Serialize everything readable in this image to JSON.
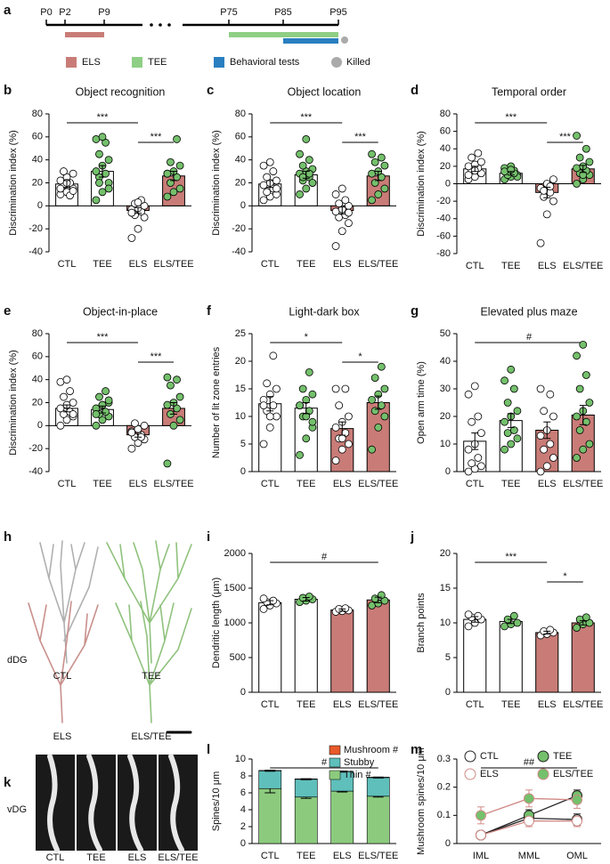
{
  "chart_data": [
    {
      "type": "timeline",
      "panel": "a",
      "ticks": [
        "P0",
        "P2",
        "P9",
        "P75",
        "P85",
        "P95"
      ],
      "periods": [
        {
          "name": "ELS",
          "color": "#c97c77",
          "from": "P2",
          "to": "P9",
          "row": 0
        },
        {
          "name": "TEE",
          "color": "#8fcf85",
          "from": "P75",
          "to": "P95",
          "row": 0
        },
        {
          "name": "Behavioral tests",
          "color": "#2a7fc0",
          "from": "P85",
          "to": "P95",
          "row": 1
        }
      ],
      "event": {
        "name": "Killed",
        "color": "#aaaaaa",
        "at": "P95"
      }
    },
    {
      "type": "bar",
      "panel": "b",
      "title": "Object recognition",
      "ylabel": "Discrimination index (%)",
      "categories": [
        "CTL",
        "TEE",
        "ELS",
        "ELS/TEE"
      ],
      "values": [
        19,
        30,
        -4,
        26
      ],
      "errors": [
        3,
        5,
        2.5,
        4
      ],
      "bar_colors": [
        "#ffffff",
        "#ffffff",
        "#c97c77",
        "#c97c77"
      ],
      "point_colors": [
        "#ffffff",
        "#74c06c",
        "#ffffff",
        "#74c06c"
      ],
      "points": [
        [
          10,
          12,
          15,
          18,
          20,
          22,
          25,
          28,
          30,
          9,
          15,
          20,
          13
        ],
        [
          5,
          12,
          20,
          25,
          28,
          30,
          35,
          40,
          45,
          55,
          58,
          60,
          15,
          20
        ],
        [
          -28,
          -20,
          -10,
          -8,
          -5,
          -3,
          -2,
          0,
          2,
          5,
          -6,
          3
        ],
        [
          8,
          12,
          15,
          20,
          25,
          28,
          30,
          35,
          38,
          58,
          28
        ]
      ],
      "ylim": [
        -40,
        80
      ],
      "yticks": [
        -40,
        -20,
        0,
        20,
        40,
        60,
        80
      ],
      "annotations": [
        {
          "text": "***",
          "between": [
            "CTL",
            "ELS"
          ]
        },
        {
          "text": "***",
          "between": [
            "ELS",
            "ELS/TEE"
          ]
        }
      ]
    },
    {
      "type": "bar",
      "panel": "c",
      "title": "Object location",
      "ylabel": "Discrimination index (%)",
      "categories": [
        "CTL",
        "TEE",
        "ELS",
        "ELS/TEE"
      ],
      "values": [
        19,
        27,
        -4,
        26
      ],
      "errors": [
        3,
        3,
        3,
        4
      ],
      "bar_colors": [
        "#ffffff",
        "#ffffff",
        "#c97c77",
        "#c97c77"
      ],
      "point_colors": [
        "#ffffff",
        "#74c06c",
        "#ffffff",
        "#74c06c"
      ],
      "points": [
        [
          5,
          8,
          10,
          12,
          15,
          18,
          20,
          22,
          25,
          30,
          35,
          38,
          15
        ],
        [
          10,
          15,
          20,
          22,
          25,
          28,
          30,
          32,
          35,
          40,
          45,
          58,
          20,
          25,
          28
        ],
        [
          -35,
          -22,
          -15,
          -10,
          -8,
          -5,
          -3,
          0,
          2,
          5,
          10,
          15,
          -6
        ],
        [
          5,
          10,
          15,
          20,
          25,
          28,
          30,
          35,
          38,
          42,
          45
        ]
      ],
      "ylim": [
        -40,
        80
      ],
      "yticks": [
        -40,
        -20,
        0,
        20,
        40,
        60,
        80
      ],
      "annotations": [
        {
          "text": "***",
          "between": [
            "CTL",
            "ELS"
          ]
        },
        {
          "text": "***",
          "between": [
            "ELS",
            "ELS/TEE"
          ]
        }
      ]
    },
    {
      "type": "bar",
      "panel": "d",
      "title": "Temporal order",
      "ylabel": "Discrimination index (%)",
      "categories": [
        "CTL",
        "TEE",
        "ELS",
        "ELS/TEE"
      ],
      "values": [
        17,
        12,
        -10,
        17
      ],
      "errors": [
        3,
        2,
        6,
        4
      ],
      "bar_colors": [
        "#ffffff",
        "#ffffff",
        "#c97c77",
        "#c97c77"
      ],
      "point_colors": [
        "#ffffff",
        "#74c06c",
        "#ffffff",
        "#74c06c"
      ],
      "points": [
        [
          5,
          8,
          12,
          15,
          18,
          20,
          22,
          25,
          30,
          35,
          10,
          15
        ],
        [
          5,
          8,
          10,
          12,
          15,
          18,
          20,
          8,
          10,
          12,
          14,
          16
        ],
        [
          -68,
          -35,
          -20,
          -15,
          -10,
          -5,
          0,
          5,
          -8,
          -3
        ],
        [
          0,
          5,
          10,
          12,
          15,
          18,
          20,
          25,
          30,
          40,
          55,
          10
        ]
      ],
      "ylim": [
        -80,
        80
      ],
      "yticks": [
        -80,
        -60,
        -40,
        -20,
        0,
        20,
        40,
        60,
        80
      ],
      "annotations": [
        {
          "text": "***",
          "between": [
            "CTL",
            "ELS"
          ]
        },
        {
          "text": "***",
          "between": [
            "ELS",
            "ELS/TEE"
          ]
        }
      ]
    },
    {
      "type": "bar",
      "panel": "e",
      "title": "Object-in-place",
      "ylabel": "Discrimination index (%)",
      "categories": [
        "CTL",
        "TEE",
        "ELS",
        "ELS/TEE"
      ],
      "values": [
        15,
        14,
        -8,
        15
      ],
      "errors": [
        3,
        3,
        2,
        5
      ],
      "bar_colors": [
        "#ffffff",
        "#ffffff",
        "#c97c77",
        "#c97c77"
      ],
      "point_colors": [
        "#ffffff",
        "#74c06c",
        "#ffffff",
        "#74c06c"
      ],
      "points": [
        [
          0,
          5,
          8,
          10,
          12,
          15,
          18,
          20,
          25,
          30,
          38,
          40,
          10
        ],
        [
          0,
          5,
          8,
          10,
          12,
          15,
          18,
          20,
          25,
          30,
          10,
          18,
          22
        ],
        [
          -20,
          -15,
          -12,
          -10,
          -8,
          -5,
          -3,
          0,
          2,
          -10,
          -6
        ],
        [
          -33,
          0,
          5,
          10,
          15,
          18,
          20,
          25,
          35,
          40,
          42
        ]
      ],
      "ylim": [
        -40,
        80
      ],
      "yticks": [
        -40,
        -20,
        0,
        20,
        40,
        60,
        80
      ],
      "annotations": [
        {
          "text": "***",
          "between": [
            "CTL",
            "ELS"
          ]
        },
        {
          "text": "***",
          "between": [
            "ELS",
            "ELS/TEE"
          ]
        }
      ]
    },
    {
      "type": "bar",
      "panel": "f",
      "title": "Light-dark box",
      "ylabel": "Number of lit zone entries",
      "categories": [
        "CTL",
        "TEE",
        "ELS",
        "ELS/TEE"
      ],
      "values": [
        12.3,
        11.5,
        7.8,
        12.5
      ],
      "errors": [
        1.3,
        1,
        1.2,
        1.2
      ],
      "bar_colors": [
        "#ffffff",
        "#ffffff",
        "#c97c77",
        "#c97c77"
      ],
      "point_colors": [
        "#ffffff",
        "#74c06c",
        "#ffffff",
        "#74c06c"
      ],
      "points": [
        [
          5,
          8,
          10,
          11,
          12,
          13,
          14,
          15,
          16,
          21,
          12,
          10
        ],
        [
          3,
          6,
          8,
          10,
          11,
          12,
          13,
          14,
          15,
          18,
          12,
          10,
          9
        ],
        [
          2,
          4,
          5,
          6,
          7,
          8,
          9,
          10,
          12,
          15,
          15,
          6
        ],
        [
          4,
          8,
          10,
          11,
          12,
          13,
          14,
          15,
          17,
          19
        ]
      ],
      "ylim": [
        0,
        25
      ],
      "yticks": [
        0,
        5,
        10,
        15,
        20,
        25
      ],
      "annotations": [
        {
          "text": "*",
          "between": [
            "CTL",
            "ELS"
          ]
        },
        {
          "text": "*",
          "between": [
            "ELS",
            "ELS/TEE"
          ]
        }
      ]
    },
    {
      "type": "bar",
      "panel": "g",
      "title": "Elevated plus maze",
      "ylabel": "Open arm time (%)",
      "categories": [
        "CTL",
        "TEE",
        "ELS",
        "ELS/TEE"
      ],
      "values": [
        11,
        18.5,
        15,
        20.5
      ],
      "errors": [
        3,
        2.5,
        3,
        3.5
      ],
      "bar_colors": [
        "#ffffff",
        "#ffffff",
        "#c97c77",
        "#c97c77"
      ],
      "point_colors": [
        "#ffffff",
        "#74c06c",
        "#ffffff",
        "#74c06c"
      ],
      "points": [
        [
          0,
          1,
          2,
          3,
          5,
          8,
          10,
          14,
          18,
          20,
          28,
          31
        ],
        [
          8,
          10,
          12,
          14,
          15,
          18,
          20,
          22,
          25,
          30,
          33,
          37
        ],
        [
          0,
          2,
          5,
          8,
          10,
          13,
          15,
          20,
          22,
          28,
          30
        ],
        [
          5,
          8,
          10,
          15,
          18,
          20,
          22,
          25,
          30,
          35,
          42,
          46
        ]
      ],
      "ylim": [
        0,
        50
      ],
      "yticks": [
        0,
        10,
        20,
        30,
        40,
        50
      ],
      "annotations": [
        {
          "text": "#",
          "between": [
            "CTL",
            "ELS/TEE"
          ]
        }
      ]
    },
    {
      "type": "bar",
      "panel": "i",
      "ylabel": "Dendritic length (μm)",
      "categories": [
        "CTL",
        "TEE",
        "ELS",
        "ELS/TEE"
      ],
      "values": [
        1290,
        1340,
        1185,
        1330
      ],
      "errors": [
        30,
        25,
        15,
        40
      ],
      "bar_colors": [
        "#ffffff",
        "#ffffff",
        "#c97c77",
        "#c97c77"
      ],
      "point_colors": [
        "#ffffff",
        "#74c06c",
        "#ffffff",
        "#74c06c"
      ],
      "points": [
        [
          1200,
          1250,
          1280,
          1300,
          1320,
          1350
        ],
        [
          1300,
          1320,
          1340,
          1360,
          1380
        ],
        [
          1160,
          1170,
          1180,
          1200,
          1210
        ],
        [
          1250,
          1280,
          1320,
          1350,
          1400
        ]
      ],
      "ylim": [
        0,
        2000
      ],
      "yticks": [
        0,
        500,
        1000,
        1500,
        2000
      ],
      "annotations": [
        {
          "text": "#",
          "between": [
            "CTL",
            "ELS/TEE"
          ]
        }
      ]
    },
    {
      "type": "bar",
      "panel": "j",
      "ylabel": "Branch points",
      "categories": [
        "CTL",
        "TEE",
        "ELS",
        "ELS/TEE"
      ],
      "values": [
        10.5,
        10.2,
        8.6,
        10
      ],
      "errors": [
        0.4,
        0.3,
        0.2,
        0.3
      ],
      "bar_colors": [
        "#ffffff",
        "#ffffff",
        "#c97c77",
        "#c97c77"
      ],
      "point_colors": [
        "#ffffff",
        "#74c06c",
        "#ffffff",
        "#74c06c"
      ],
      "points": [
        [
          9.5,
          10,
          10.5,
          10.8,
          11,
          11.2
        ],
        [
          9.5,
          9.8,
          10,
          10.5,
          11
        ],
        [
          8.2,
          8.4,
          8.6,
          8.8,
          9
        ],
        [
          9.3,
          9.8,
          10,
          10.5,
          10.8
        ]
      ],
      "ylim": [
        0,
        20
      ],
      "yticks": [
        0,
        5,
        10,
        15,
        20
      ],
      "annotations": [
        {
          "text": "***",
          "between": [
            "CTL",
            "ELS"
          ]
        },
        {
          "text": "*",
          "between": [
            "ELS",
            "ELS/TEE"
          ]
        }
      ]
    },
    {
      "type": "stacked_bar",
      "panel": "l",
      "ylabel": "Spines/10 μm",
      "categories": [
        "CTL",
        "TEE",
        "ELS",
        "ELS/TEE"
      ],
      "series": [
        {
          "name": "Thin #",
          "color": "#8ccb7e",
          "values": [
            6.5,
            5.5,
            6.2,
            5.6
          ],
          "errors": [
            0.5,
            0.15,
            0.1,
            0.1
          ]
        },
        {
          "name": "Stubby",
          "color": "#5fbfbb",
          "values": [
            2.1,
            2.1,
            2.3,
            2.2
          ],
          "errors": [
            0.05,
            0.05,
            0.05,
            0.05
          ]
        },
        {
          "name": "Mushroom #",
          "color": "#e85a2a",
          "values": [
            0.05,
            0.05,
            0.05,
            0.05
          ],
          "errors": [
            0.01,
            0.01,
            0.01,
            0.01
          ]
        }
      ],
      "ylim": [
        0,
        10
      ],
      "yticks": [
        0,
        2,
        4,
        6,
        8,
        10
      ],
      "annotations": [
        {
          "text": "#",
          "between": [
            "CTL",
            "ELS/TEE"
          ]
        }
      ]
    },
    {
      "type": "line",
      "panel": "m",
      "ylabel": "Mushroom spines/10 μm",
      "categories": [
        "IML",
        "MML",
        "OML"
      ],
      "series": [
        {
          "name": "CTL",
          "color": "#222222",
          "marker_fill": "#ffffff",
          "values": [
            0.03,
            0.09,
            0.085
          ],
          "errors": [
            0.01,
            0.02,
            0.02
          ]
        },
        {
          "name": "TEE",
          "color": "#222222",
          "marker_fill": "#74c06c",
          "values": [
            0.03,
            0.1,
            0.17
          ],
          "errors": [
            0.01,
            0.02,
            0.02
          ]
        },
        {
          "name": "ELS",
          "color": "#d08a86",
          "marker_fill": "#ffffff",
          "values": [
            0.03,
            0.08,
            0.08
          ],
          "errors": [
            0.01,
            0.02,
            0.02
          ]
        },
        {
          "name": "ELS/TEE",
          "color": "#d08a86",
          "marker_fill": "#74c06c",
          "values": [
            0.1,
            0.16,
            0.155
          ],
          "errors": [
            0.03,
            0.03,
            0.03
          ]
        }
      ],
      "ylim": [
        0,
        0.3
      ],
      "yticks": [
        0,
        0.1,
        0.2,
        0.3
      ],
      "annotations": [
        {
          "text": "##",
          "between": [
            "IML",
            "OML"
          ]
        }
      ]
    }
  ],
  "neuron_panel": {
    "panel": "h",
    "region": "dDG",
    "labels": [
      "CTL",
      "TEE",
      "ELS",
      "ELS/TEE"
    ]
  },
  "spine_panel": {
    "panel": "k",
    "region": "vDG",
    "labels": [
      "CTL",
      "TEE",
      "ELS",
      "ELS/TEE"
    ]
  }
}
